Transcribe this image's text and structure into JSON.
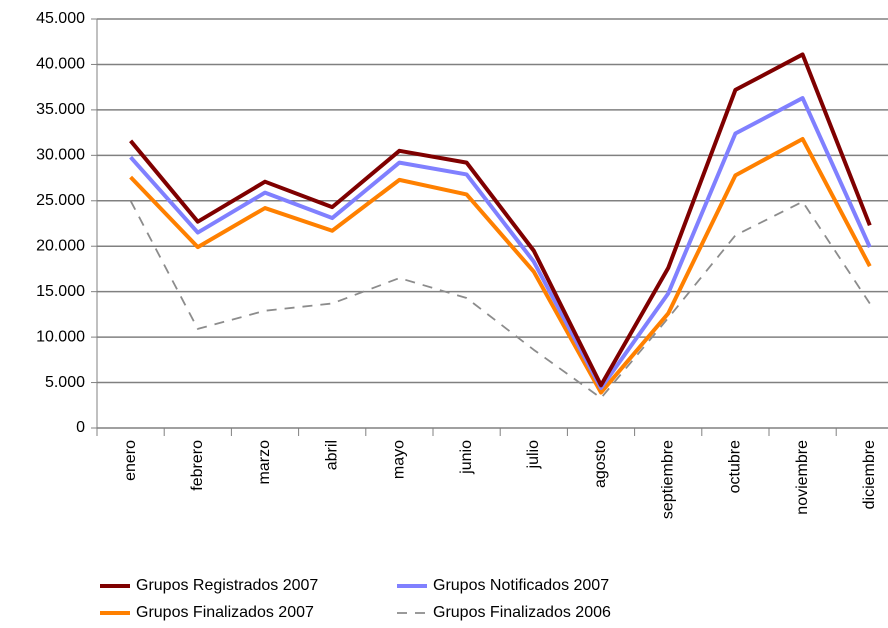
{
  "chart_data": {
    "type": "line",
    "categories": [
      "enero",
      "febrero",
      "marzo",
      "abril",
      "mayo",
      "junio",
      "julio",
      "agosto",
      "septiembre",
      "octubre",
      "noviembre",
      "diciembre"
    ],
    "series": [
      {
        "name": "Grupos Registrados 2007",
        "color": "#7f0000",
        "dashed": false,
        "values": [
          31600,
          22700,
          27100,
          24300,
          30500,
          29200,
          19500,
          4700,
          17600,
          37200,
          41100,
          22300
        ]
      },
      {
        "name": "Grupos Notificados 2007",
        "color": "#8080ff",
        "dashed": false,
        "values": [
          29800,
          21500,
          25900,
          23100,
          29200,
          27900,
          18300,
          4400,
          14800,
          32400,
          36300,
          19900
        ]
      },
      {
        "name": "Grupos Finalizados 2007",
        "color": "#ff8000",
        "dashed": false,
        "values": [
          27600,
          19900,
          24200,
          21700,
          27300,
          25700,
          17200,
          3900,
          12600,
          27800,
          31800,
          17800
        ]
      },
      {
        "name": "Grupos Finalizados 2006",
        "color": "#8c8c8c",
        "dashed": true,
        "values": [
          25000,
          10900,
          12900,
          13700,
          16500,
          14300,
          8600,
          3300,
          12100,
          21200,
          24900,
          13700
        ]
      }
    ],
    "ylim": [
      0,
      45000
    ],
    "yticks": [
      0,
      {
        "value": 5000,
        "label": "5.000"
      },
      {
        "value": 10000,
        "label": "10.000"
      },
      {
        "value": 15000,
        "label": "15.000"
      },
      {
        "value": 20000,
        "label": "20.000"
      },
      {
        "value": 25000,
        "label": "25.000"
      },
      {
        "value": 30000,
        "label": "30.000"
      },
      {
        "value": 35000,
        "label": "35.000"
      },
      {
        "value": 40000,
        "label": "40.000"
      },
      {
        "value": 45000,
        "label": "45.000"
      }
    ],
    "grid": true
  }
}
